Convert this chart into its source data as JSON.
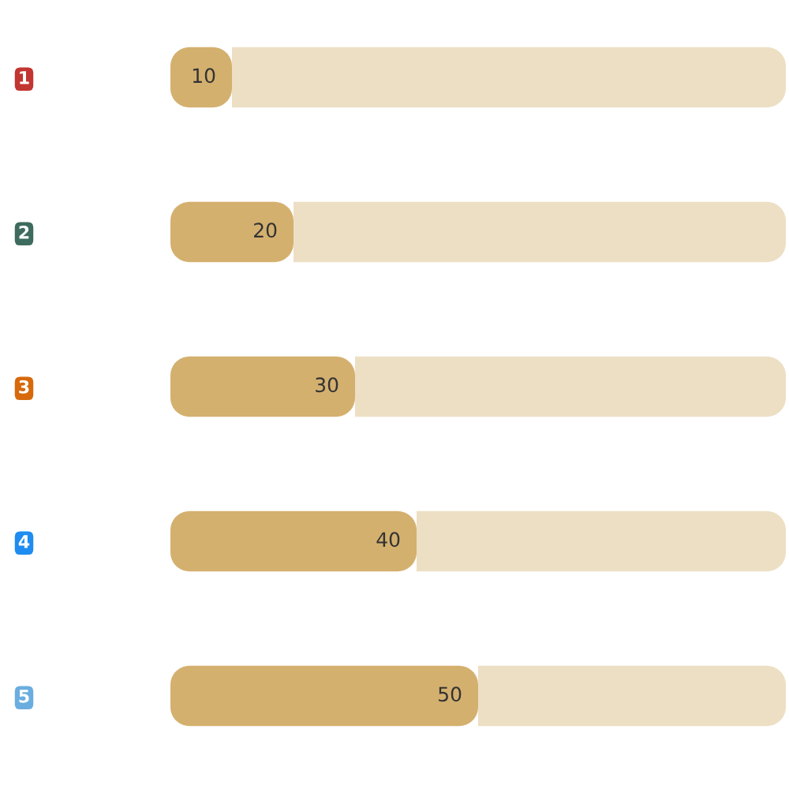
{
  "chart_data": {
    "type": "bar",
    "orientation": "horizontal",
    "stacked": true,
    "categories": [
      "1",
      "2",
      "3",
      "4",
      "5"
    ],
    "series": [
      {
        "color": "#d4b06f",
        "values": [
          10,
          20,
          30,
          40,
          50
        ],
        "value_labels": [
          "10",
          "20",
          "30",
          "40",
          "50"
        ]
      },
      {
        "color": "#eddfc4",
        "values": [
          90,
          80,
          70,
          60,
          50
        ]
      }
    ],
    "tick_labels": "y"
  }
}
